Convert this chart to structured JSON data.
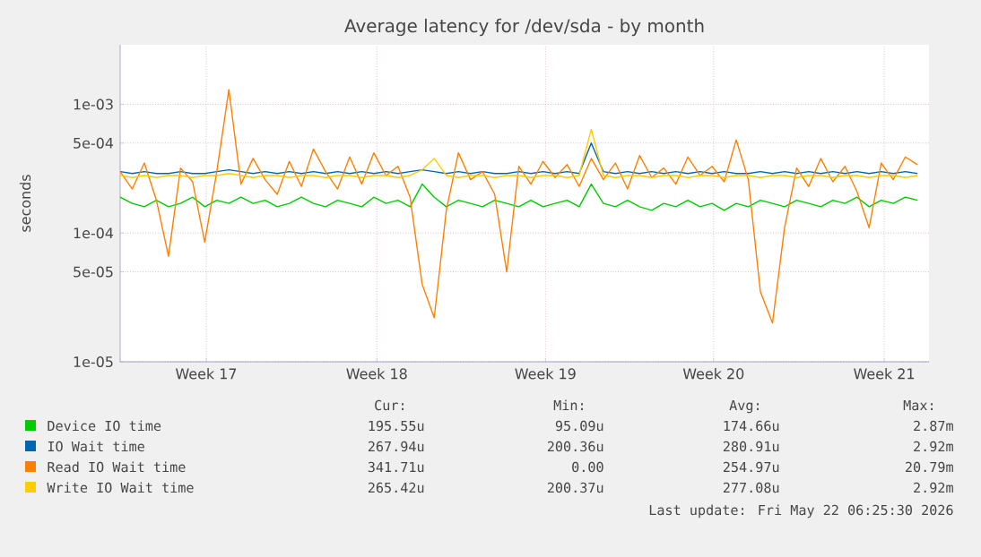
{
  "chart_data": {
    "type": "line",
    "title": "Average latency for /dev/sda - by month",
    "ylabel": "seconds",
    "log": "y",
    "grid": true,
    "legend": "bottom",
    "marker": "none",
    "line_style": "solid",
    "xlim": [
      "2026-04-18T22:00",
      "2026-05-22T09:30"
    ],
    "xticks": [
      {
        "value": "2026-04-22T11:30",
        "label": "Week 17"
      },
      {
        "value": "2026-04-29T13:00",
        "label": "Week 18"
      },
      {
        "value": "2026-05-06T12:30",
        "label": "Week 19"
      },
      {
        "value": "2026-05-13T11:30",
        "label": "Week 20"
      },
      {
        "value": "2026-05-20T13:00",
        "label": "Week 21"
      }
    ],
    "ylim": [
      1e-05,
      0.0029
    ],
    "yticks": [
      {
        "value": 1e-05,
        "label": "1e-05"
      },
      {
        "value": 5e-05,
        "label": "5e-05"
      },
      {
        "value": 0.0001,
        "label": "1e-04"
      },
      {
        "value": 0.0005,
        "label": "5e-04"
      },
      {
        "value": 0.001,
        "label": "1e-03"
      }
    ],
    "x": [
      "2026-04-18T22:00",
      "2026-04-19T10:00",
      "2026-04-19T22:00",
      "2026-04-20T10:00",
      "2026-04-20T22:00",
      "2026-04-21T10:00",
      "2026-04-21T22:00",
      "2026-04-22T10:00",
      "2026-04-22T22:00",
      "2026-04-23T10:00",
      "2026-04-23T22:00",
      "2026-04-24T10:00",
      "2026-04-24T22:00",
      "2026-04-25T10:00",
      "2026-04-25T22:00",
      "2026-04-26T10:00",
      "2026-04-26T22:00",
      "2026-04-27T10:00",
      "2026-04-27T22:00",
      "2026-04-28T10:00",
      "2026-04-28T22:00",
      "2026-04-29T10:00",
      "2026-04-29T22:00",
      "2026-04-30T10:00",
      "2026-04-30T22:00",
      "2026-05-01T10:00",
      "2026-05-01T22:00",
      "2026-05-02T10:00",
      "2026-05-02T22:00",
      "2026-05-03T10:00",
      "2026-05-03T22:00",
      "2026-05-04T10:00",
      "2026-05-04T22:00",
      "2026-05-05T10:00",
      "2026-05-05T22:00",
      "2026-05-06T10:00",
      "2026-05-06T22:00",
      "2026-05-07T10:00",
      "2026-05-07T22:00",
      "2026-05-08T10:00",
      "2026-05-08T22:00",
      "2026-05-09T10:00",
      "2026-05-09T22:00",
      "2026-05-10T10:00",
      "2026-05-10T22:00",
      "2026-05-11T10:00",
      "2026-05-11T22:00",
      "2026-05-12T10:00",
      "2026-05-12T22:00",
      "2026-05-13T10:00",
      "2026-05-13T22:00",
      "2026-05-14T10:00",
      "2026-05-14T22:00",
      "2026-05-15T10:00",
      "2026-05-15T22:00",
      "2026-05-16T10:00",
      "2026-05-16T22:00",
      "2026-05-17T10:00",
      "2026-05-17T22:00",
      "2026-05-18T10:00",
      "2026-05-18T22:00",
      "2026-05-19T10:00",
      "2026-05-19T22:00",
      "2026-05-20T10:00",
      "2026-05-20T22:00",
      "2026-05-21T10:00",
      "2026-05-21T22:00"
    ],
    "series": [
      {
        "name": "Device IO time",
        "color": "#00cc00",
        "values": [
          0.00019,
          0.00017,
          0.00016,
          0.00018,
          0.00016,
          0.00017,
          0.00019,
          0.00016,
          0.00018,
          0.00017,
          0.00019,
          0.00017,
          0.00018,
          0.00016,
          0.00017,
          0.00019,
          0.00017,
          0.00016,
          0.00018,
          0.00017,
          0.00016,
          0.00019,
          0.00017,
          0.00018,
          0.00016,
          0.00024,
          0.00019,
          0.00016,
          0.00018,
          0.00017,
          0.00016,
          0.00018,
          0.00017,
          0.00016,
          0.00018,
          0.00016,
          0.00017,
          0.00018,
          0.00016,
          0.00024,
          0.00017,
          0.00016,
          0.00018,
          0.00016,
          0.00015,
          0.00017,
          0.00016,
          0.00018,
          0.00016,
          0.00017,
          0.00015,
          0.00017,
          0.00016,
          0.00018,
          0.00017,
          0.00016,
          0.00018,
          0.00017,
          0.00016,
          0.00018,
          0.00017,
          0.00019,
          0.00016,
          0.00018,
          0.00017,
          0.00019,
          0.00018
        ]
      },
      {
        "name": "IO Wait time",
        "color": "#0066b3",
        "values": [
          0.0003,
          0.00029,
          0.0003,
          0.00029,
          0.00029,
          0.0003,
          0.00029,
          0.00029,
          0.0003,
          0.00031,
          0.0003,
          0.00029,
          0.0003,
          0.00029,
          0.0003,
          0.00029,
          0.0003,
          0.00029,
          0.0003,
          0.00029,
          0.0003,
          0.00029,
          0.0003,
          0.00029,
          0.0003,
          0.00031,
          0.0003,
          0.00029,
          0.0003,
          0.00029,
          0.0003,
          0.00029,
          0.00029,
          0.0003,
          0.00029,
          0.0003,
          0.00029,
          0.0003,
          0.00029,
          0.0005,
          0.0003,
          0.00029,
          0.0003,
          0.00029,
          0.0003,
          0.00029,
          0.0003,
          0.00029,
          0.0003,
          0.00029,
          0.0003,
          0.00029,
          0.00029,
          0.0003,
          0.00029,
          0.0003,
          0.00029,
          0.0003,
          0.00029,
          0.0003,
          0.00029,
          0.0003,
          0.00029,
          0.0003,
          0.00029,
          0.0003,
          0.00029
        ]
      },
      {
        "name": "Read IO Wait time",
        "color": "#ff8000",
        "values": [
          0.0003,
          0.00022,
          0.00035,
          0.00018,
          6.6e-05,
          0.00032,
          0.00025,
          8.5e-05,
          0.0003,
          0.0013,
          0.00024,
          0.00038,
          0.00026,
          0.0002,
          0.00036,
          0.00023,
          0.00045,
          0.0003,
          0.00022,
          0.00039,
          0.00024,
          0.00042,
          0.00028,
          0.00033,
          0.00019,
          4e-05,
          2.2e-05,
          0.00015,
          0.00042,
          0.00026,
          0.0003,
          0.0002,
          5e-05,
          0.00033,
          0.00024,
          0.00036,
          0.00027,
          0.00034,
          0.00023,
          0.00038,
          0.00026,
          0.00035,
          0.00022,
          0.0004,
          0.00027,
          0.00032,
          0.00024,
          0.00039,
          0.00028,
          0.00033,
          0.00025,
          0.00053,
          0.00026,
          3.5e-05,
          2e-05,
          0.00011,
          0.00032,
          0.00023,
          0.00038,
          0.00025,
          0.00033,
          0.00021,
          0.00011,
          0.00035,
          0.00026,
          0.00039,
          0.00034
        ]
      },
      {
        "name": "Write IO Wait time",
        "color": "#ffcc00",
        "values": [
          0.00028,
          0.00027,
          0.00028,
          0.00027,
          0.00028,
          0.00028,
          0.00027,
          0.00028,
          0.00028,
          0.00029,
          0.00028,
          0.00027,
          0.00028,
          0.00028,
          0.00027,
          0.00028,
          0.00028,
          0.00027,
          0.00028,
          0.00028,
          0.00027,
          0.00028,
          0.00028,
          0.00027,
          0.00028,
          0.00031,
          0.00038,
          0.00028,
          0.00027,
          0.00028,
          0.00028,
          0.00027,
          0.00028,
          0.00028,
          0.00027,
          0.00028,
          0.00028,
          0.00027,
          0.00028,
          0.00064,
          0.00028,
          0.00027,
          0.00028,
          0.00028,
          0.00027,
          0.00028,
          0.00028,
          0.00027,
          0.00028,
          0.00028,
          0.00027,
          0.00028,
          0.00028,
          0.00027,
          0.00028,
          0.00028,
          0.00027,
          0.00028,
          0.00028,
          0.00027,
          0.00028,
          0.00028,
          0.00027,
          0.00028,
          0.00028,
          0.00027,
          0.00028
        ]
      }
    ],
    "annotations": [
      "Cur:",
      "Min:",
      "Avg:",
      "Max:",
      "195.55u",
      "95.09u",
      "174.66u",
      "2.87m",
      "267.94u",
      "200.36u",
      "280.91u",
      "2.92m",
      "341.71u",
      "0.00",
      "254.97u",
      "20.79m",
      "265.42u",
      "200.37u",
      "277.08u",
      "2.92m",
      "Last update: Fri May 22 06:25:30 2026"
    ]
  }
}
